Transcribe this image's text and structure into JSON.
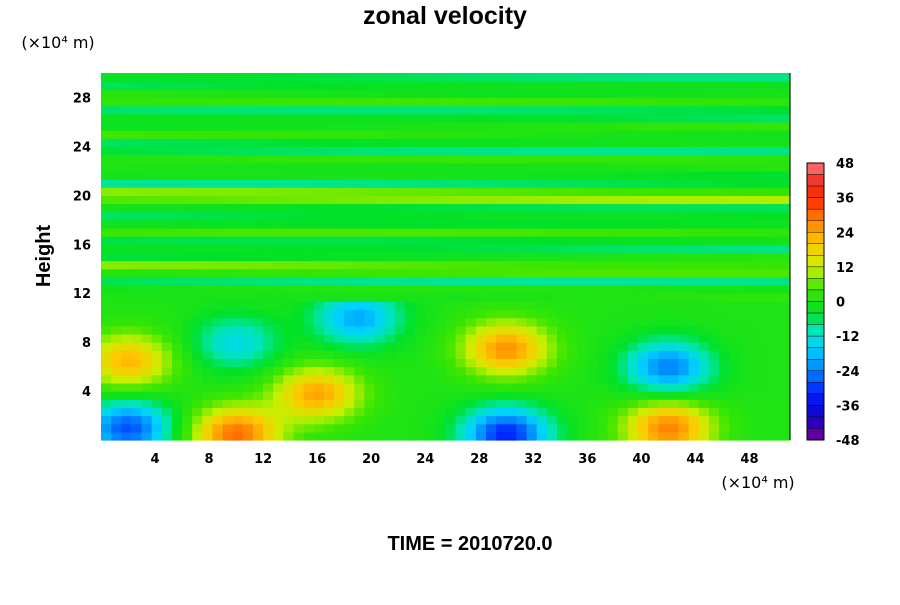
{
  "chart_data": {
    "type": "heatmap",
    "title": "zonal velocity",
    "ylabel": "Height",
    "xlabel": "",
    "x_unit_label": "(×10⁴ m)",
    "y_unit_label": "(×10⁴ m)",
    "time_label": "TIME = 2010720.0",
    "xlim": [
      0,
      51
    ],
    "ylim": [
      0,
      30
    ],
    "x_ticks": [
      4,
      8,
      12,
      16,
      20,
      24,
      28,
      32,
      36,
      40,
      44,
      48
    ],
    "y_ticks": [
      4,
      8,
      12,
      16,
      20,
      24,
      28
    ],
    "colorbar": {
      "min": -48,
      "max": 48,
      "step": 4,
      "tick_labels": [
        48,
        36,
        24,
        12,
        0,
        -12,
        -24,
        -36,
        -48
      ]
    },
    "features": [
      {
        "x": 2,
        "y": 6.5,
        "value": 22
      },
      {
        "x": 10,
        "y": 0.5,
        "value": 30
      },
      {
        "x": 16,
        "y": 3.8,
        "value": 24
      },
      {
        "x": 30,
        "y": 7.5,
        "value": 26
      },
      {
        "x": 42,
        "y": 1,
        "value": 28
      },
      {
        "x": 42,
        "y": 6,
        "value": -24
      },
      {
        "x": 2,
        "y": 1,
        "value": -28
      },
      {
        "x": 30,
        "y": 0.5,
        "value": -32
      },
      {
        "x": 10,
        "y": 8,
        "value": -14
      },
      {
        "x": 19,
        "y": 10,
        "value": -20
      }
    ]
  }
}
